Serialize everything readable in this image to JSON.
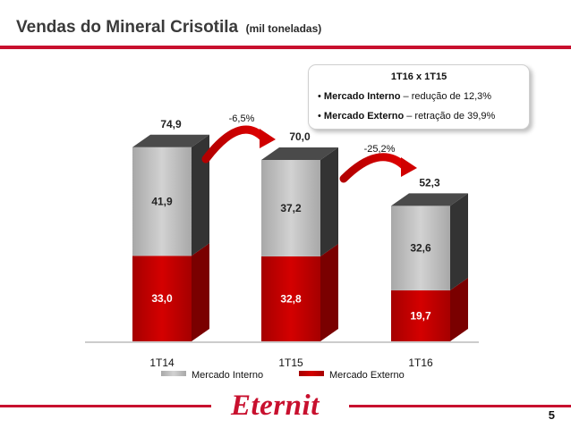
{
  "header": {
    "title": "Vendas do Mineral Crisotila",
    "subtitle": "(mil toneladas)"
  },
  "callout": {
    "title": "1T16 x 1T15",
    "line1_bold": "Mercado Interno",
    "line1_rest": " – redução de 12,3%",
    "line2_bold": "Mercado Externo",
    "line2_rest": " – retração de 39,9%",
    "bullet": "•"
  },
  "chart_data": {
    "type": "bar",
    "stacked": true,
    "three_d": true,
    "categories": [
      "1T14",
      "1T15",
      "1T16"
    ],
    "series": [
      {
        "name": "Mercado Externo",
        "values": [
          33.0,
          32.8,
          19.7
        ],
        "labels": [
          "33,0",
          "32,8",
          "19,7"
        ],
        "color": "#c00000"
      },
      {
        "name": "Mercado Interno",
        "values": [
          41.9,
          37.2,
          32.6
        ],
        "labels": [
          "41,9",
          "37,2",
          "32,6"
        ],
        "color": "#bdbdbd"
      }
    ],
    "totals": [
      74.9,
      70.0,
      52.3
    ],
    "total_labels": [
      "74,9",
      "70,0",
      "52,3"
    ],
    "growth_arrows": [
      {
        "from": "1T14",
        "to": "1T15",
        "label": "-6,5%"
      },
      {
        "from": "1T15",
        "to": "1T16",
        "label": "-25,2%"
      }
    ],
    "legend_position": "bottom",
    "ylim": [
      0,
      80
    ]
  },
  "colors": {
    "accent": "#c8102e",
    "externo": "#c00000",
    "interno": "#bdbdbd",
    "cap": "#444444"
  },
  "footer": {
    "logo": "Eternit",
    "page_number": "5"
  }
}
